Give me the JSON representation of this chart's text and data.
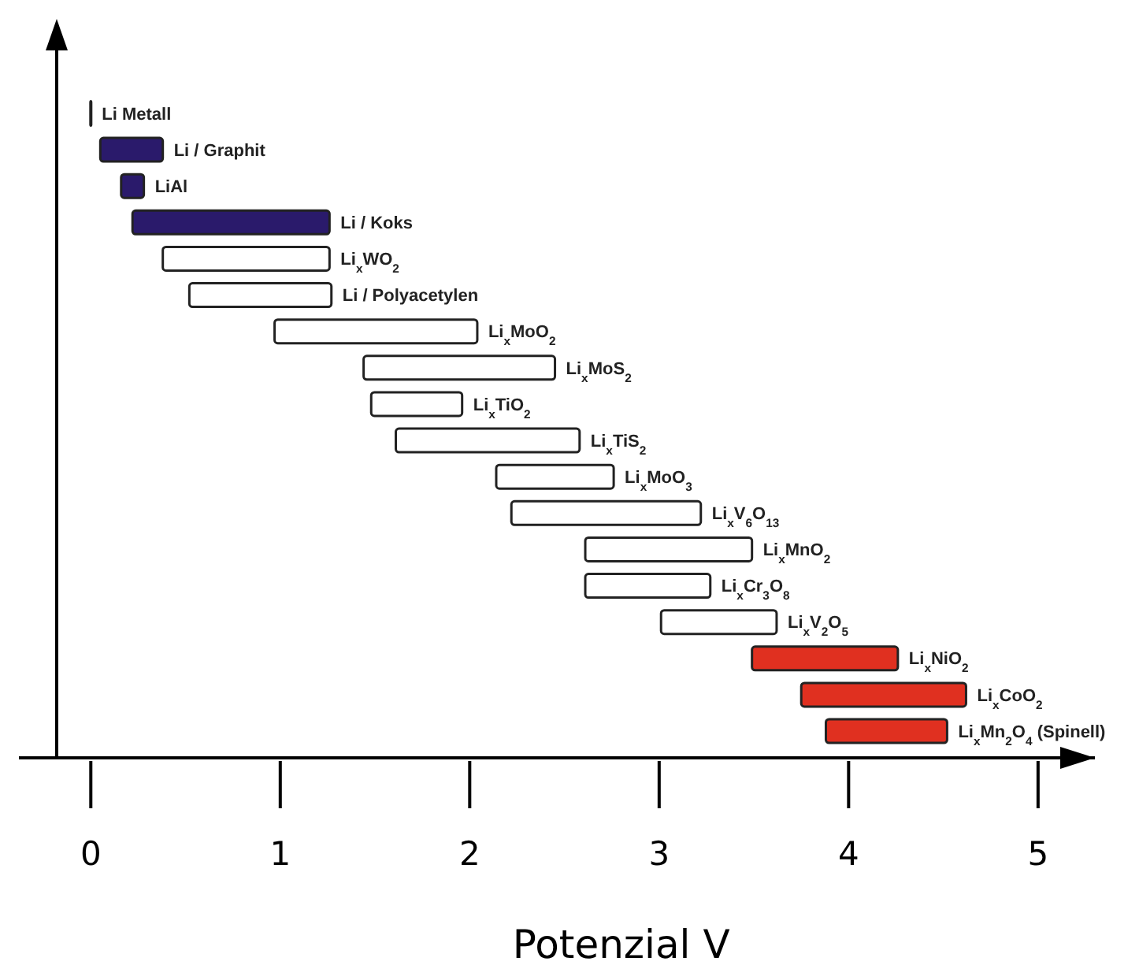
{
  "chart_data": {
    "type": "bar",
    "orientation": "horizontal",
    "xlabel": "Potenzial V",
    "categories": [
      "Li Metall",
      "Li / Graphit",
      "LiAl",
      "Li / Koks",
      "Li$_{x}$WO$_{2}$",
      "Li / Polyacetylen",
      "Li$_{x}$MoO$_{2}$",
      "Li$_{x}$MoS$_{2}$",
      "Li$_{x}$TiO$_{2}$",
      "Li$_{x}$TiS$_{2}$",
      "Li$_{x}$MoO$_{3}$",
      "Li$_{x}$V$_{6}$O$_{13}$",
      "Li$_{x}$MnO$_{2}$",
      "Li$_{x}$Cr$_{3}$O$_{8}$",
      "Li$_{x}$V$_{2}$O$_{5}$",
      "Li$_{x}$NiO$_{2}$",
      "Li$_{x}$CoO$_{2}$",
      "Li$_{x}$Mn$_{2}$O$_{4}$ (Spinell)"
    ],
    "base": [
      0,
      0.05,
      0.16,
      0.22,
      0.38,
      0.52,
      0.97,
      1.44,
      1.48,
      1.61,
      2.14,
      2.22,
      2.61,
      2.61,
      3.01,
      3.49,
      3.75,
      3.88
    ],
    "values": [
      0,
      0.33,
      0.12,
      1.04,
      0.88,
      0.75,
      1.07,
      1.01,
      0.48,
      0.97,
      0.62,
      1.0,
      0.88,
      0.66,
      0.61,
      0.77,
      0.87,
      0.64
    ],
    "colors": [
      "#000000",
      "#2a1a6b",
      "#2a1a6b",
      "#2a1a6b",
      "#ffffff",
      "#ffffff",
      "#ffffff",
      "#ffffff",
      "#ffffff",
      "#ffffff",
      "#ffffff",
      "#ffffff",
      "#ffffff",
      "#ffffff",
      "#ffffff",
      "#e03020",
      "#e03020",
      "#e03020"
    ],
    "xlim": [
      -0.18,
      5.3
    ],
    "xticks": [
      0,
      1,
      2,
      3,
      4,
      5
    ],
    "grid": false
  }
}
